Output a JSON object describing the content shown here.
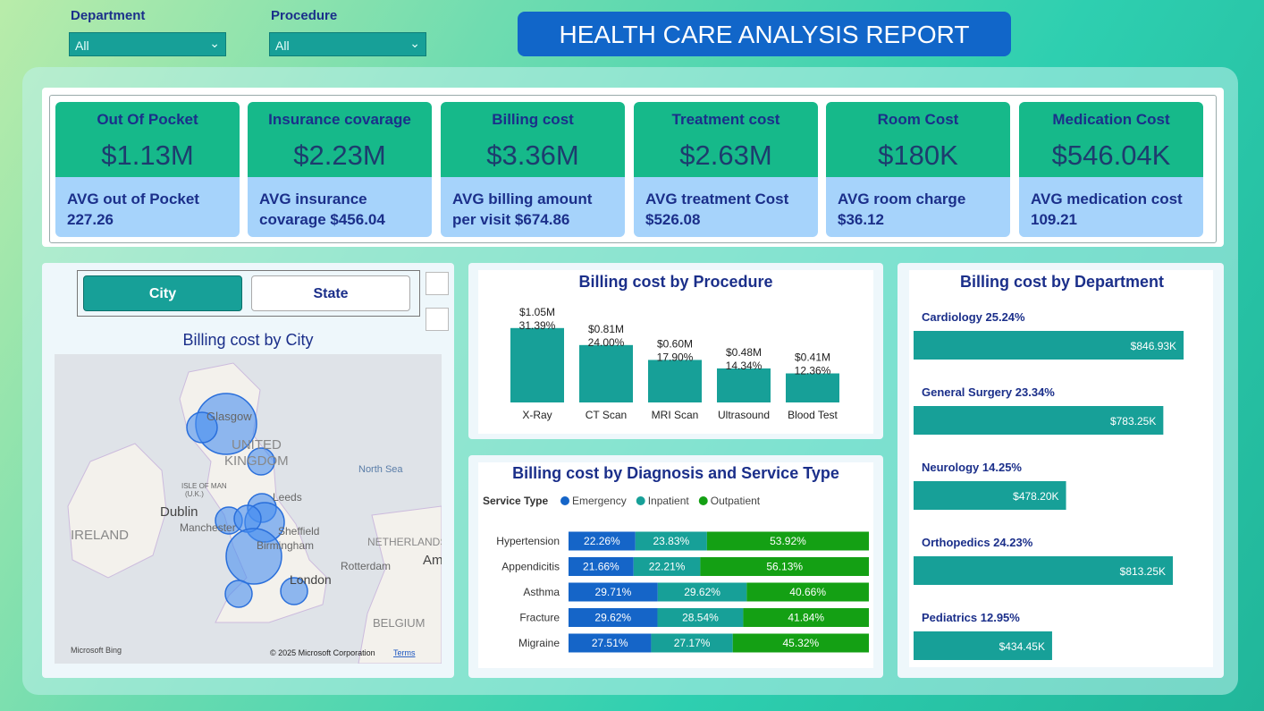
{
  "filters": [
    {
      "label": "Department",
      "value": "All"
    },
    {
      "label": "Procedure",
      "value": "All"
    }
  ],
  "header": {
    "title": "HEALTH CARE ANALYSIS REPORT"
  },
  "kpis": [
    {
      "title": "Out Of Pocket",
      "value": "$1.13M",
      "subtitle": "AVG out of Pocket 227.26"
    },
    {
      "title": "Insurance covarage",
      "value": "$2.23M",
      "subtitle": "AVG insurance covarage $456.04"
    },
    {
      "title": "Billing cost",
      "value": "$3.36M",
      "subtitle": "AVG billing amount per visit $674.86"
    },
    {
      "title": "Treatment cost",
      "value": "$2.63M",
      "subtitle": "AVG treatment Cost $526.08"
    },
    {
      "title": "Room Cost",
      "value": "$180K",
      "subtitle": "AVG room charge $36.12"
    },
    {
      "title": "Medication Cost",
      "value": "$546.04K",
      "subtitle": "AVG medication cost 109.21"
    }
  ],
  "slicer": {
    "options": [
      "City",
      "State"
    ]
  },
  "map": {
    "title": "Billing cost by City",
    "labels": [
      "Glasgow",
      "UNITED",
      "KINGDOM",
      "North Sea",
      "Leeds",
      "ISLE OF MAN",
      "(U.K.)",
      "Dublin",
      "Manchester",
      "Sheffield",
      "IRELAND",
      "Birmingham",
      "NETHERLANDS",
      "Rotterdam",
      "Ams",
      "London",
      "BELGIUM"
    ],
    "brand": "Microsoft Bing",
    "credit": "© 2025 Microsoft Corporation",
    "terms": "Terms"
  },
  "chart_data": [
    {
      "type": "bar",
      "title": "Billing cost by Procedure",
      "categories": [
        "X-Ray",
        "CT Scan",
        "MRI Scan",
        "Ultrasound",
        "Blood Test"
      ],
      "values": [
        1.05,
        0.81,
        0.6,
        0.48,
        0.41
      ],
      "value_labels": [
        "$1.05M",
        "$0.81M",
        "$0.60M",
        "$0.48M",
        "$0.41M"
      ],
      "percent_labels": [
        "31.39%",
        "24.00%",
        "17.90%",
        "14.34%",
        "12.36%"
      ],
      "color": "#17a098",
      "ylim": [
        0,
        1.3
      ]
    },
    {
      "type": "stacked_hbar",
      "title": "Billing cost by Diagnosis and Service Type",
      "legend_title": "Service Type",
      "categories": [
        "Hypertension",
        "Appendicitis",
        "Asthma",
        "Fracture",
        "Migraine"
      ],
      "series": [
        {
          "name": "Emergency",
          "color": "#1565c8",
          "values": [
            22.26,
            21.66,
            29.71,
            29.62,
            27.51
          ],
          "value_labels": [
            "22.26%",
            "21.66%",
            "29.71%",
            "29.62%",
            "27.51%"
          ]
        },
        {
          "name": "Inpatient",
          "color": "#17a098",
          "values": [
            23.83,
            22.21,
            29.62,
            28.54,
            27.17
          ],
          "value_labels": [
            "23.83%",
            "22.21%",
            "29.62%",
            "28.54%",
            "27.17%"
          ]
        },
        {
          "name": "Outpatient",
          "color": "#14a014",
          "values": [
            53.92,
            56.13,
            40.66,
            41.84,
            45.32
          ],
          "value_labels": [
            "53.92%",
            "56.13%",
            "40.66%",
            "41.84%",
            "45.32%"
          ]
        }
      ],
      "xlim": [
        0,
        100
      ]
    },
    {
      "type": "hbar",
      "title": "Billing cost by Department",
      "categories": [
        "Cardiology 25.24%",
        "General Surgery 23.34%",
        "Neurology 14.25%",
        "Orthopedics 24.23%",
        "Pediatrics 12.95%"
      ],
      "values": [
        846.93,
        783.25,
        478.2,
        813.25,
        434.45
      ],
      "value_labels": [
        "$846.93K",
        "$783.25K",
        "$478.20K",
        "$813.25K",
        "$434.45K"
      ],
      "color": "#17a098",
      "xlim": [
        0,
        900
      ]
    }
  ]
}
